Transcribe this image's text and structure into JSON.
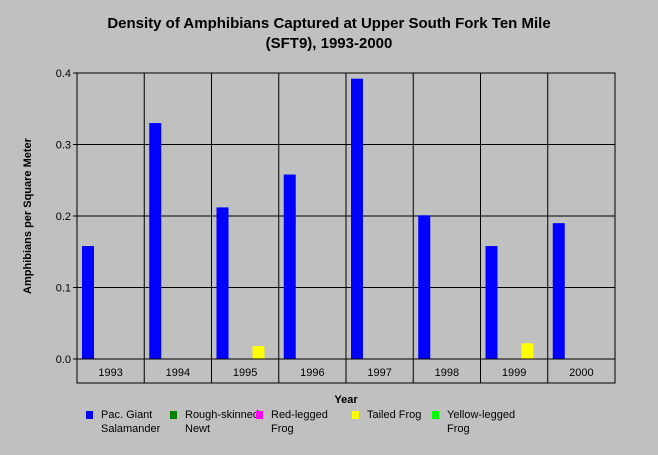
{
  "chart_data": {
    "type": "bar",
    "title": "Density of Amphibians Captured at Upper South Fork Ten Mile\n(SFT9), 1993-2000",
    "xlabel": "Year",
    "ylabel": "Amphibians per Square Meter",
    "ylim": [
      0,
      0.4
    ],
    "yticks": [
      "0.0",
      "0.1",
      "0.2",
      "0.3",
      "0.4"
    ],
    "categories": [
      "1993",
      "1994",
      "1995",
      "1996",
      "1997",
      "1998",
      "1999",
      "2000"
    ],
    "grid": true,
    "legend_position": "bottom",
    "series": [
      {
        "name": "Pac. Giant\nSalamander",
        "color": "#0000ff",
        "values": [
          0.158,
          0.33,
          0.212,
          0.258,
          0.392,
          0.201,
          0.158,
          0.19
        ]
      },
      {
        "name": "Rough-skinned\nNewt",
        "color": "#008000",
        "values": [
          0,
          0,
          0,
          0,
          0,
          0,
          0,
          0
        ]
      },
      {
        "name": "Red-legged\nFrog",
        "color": "#ff00ff",
        "values": [
          0,
          0,
          0,
          0,
          0,
          0,
          0,
          0
        ]
      },
      {
        "name": "Tailed Frog",
        "color": "#ffff00",
        "values": [
          0,
          0,
          0.018,
          0,
          0,
          0,
          0.022,
          0
        ]
      },
      {
        "name": "Yellow-legged\nFrog",
        "color": "#00ff00",
        "values": [
          0,
          0,
          0,
          0,
          0,
          0,
          0,
          0
        ]
      }
    ]
  }
}
